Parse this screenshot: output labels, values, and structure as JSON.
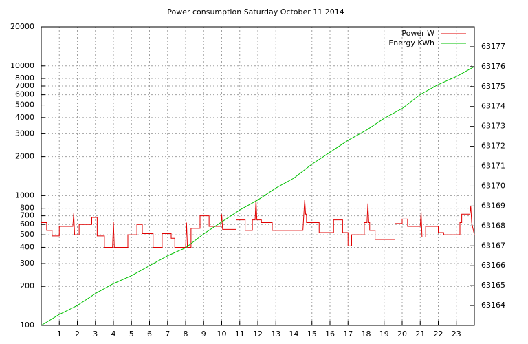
{
  "chart_data": {
    "type": "line",
    "title": "Power consumption Saturday October 11 2014",
    "xlim": [
      0,
      24
    ],
    "xticks": [
      1,
      2,
      3,
      4,
      5,
      6,
      7,
      8,
      9,
      10,
      11,
      12,
      13,
      14,
      15,
      16,
      17,
      18,
      19,
      20,
      21,
      22,
      23
    ],
    "ylim": [
      100,
      20000
    ],
    "ylog": true,
    "yticks": [
      100,
      200,
      300,
      400,
      500,
      600,
      700,
      800,
      1000,
      2000,
      3000,
      4000,
      5000,
      6000,
      7000,
      8000,
      10000,
      20000
    ],
    "y2lim": [
      63163,
      63178
    ],
    "y2ticks": [
      63164,
      63165,
      63166,
      63167,
      63168,
      63169,
      63170,
      63171,
      63172,
      63173,
      63174,
      63175,
      63176,
      63177
    ],
    "grid": true,
    "legend": "top-right",
    "series": [
      {
        "name": "Power W",
        "color": "#e00000",
        "x": [
          0,
          0.3,
          0.3,
          0.6,
          0.6,
          1.0,
          1.0,
          1.75,
          1.8,
          1.85,
          2.1,
          2.1,
          2.8,
          2.8,
          3.1,
          3.1,
          3.5,
          3.5,
          3.95,
          4.0,
          4.05,
          4.8,
          4.8,
          5.3,
          5.3,
          5.6,
          5.6,
          6.2,
          6.2,
          6.7,
          6.7,
          7.2,
          7.2,
          7.4,
          7.4,
          8.0,
          8.05,
          8.1,
          8.3,
          8.3,
          8.8,
          8.8,
          9.3,
          9.3,
          9.95,
          10.0,
          10.05,
          10.8,
          10.8,
          11.3,
          11.3,
          11.7,
          11.7,
          11.85,
          11.9,
          11.95,
          12.2,
          12.2,
          12.8,
          12.8,
          14.5,
          14.55,
          14.6,
          14.65,
          14.7,
          14.7,
          15.4,
          15.4,
          16.2,
          16.2,
          16.7,
          16.7,
          17.0,
          17.0,
          17.2,
          17.2,
          17.9,
          17.9,
          18.05,
          18.1,
          18.15,
          18.2,
          18.2,
          18.5,
          18.5,
          19.6,
          19.6,
          20.0,
          20.0,
          20.3,
          20.3,
          21.0,
          21.05,
          21.1,
          21.3,
          21.3,
          22.0,
          22.0,
          22.3,
          22.3,
          23.2,
          23.2,
          23.3,
          23.3,
          23.75,
          23.8,
          23.85,
          24.0
        ],
        "values": [
          620,
          620,
          540,
          540,
          490,
          490,
          580,
          580,
          730,
          500,
          500,
          600,
          600,
          680,
          680,
          490,
          490,
          400,
          400,
          630,
          400,
          400,
          500,
          500,
          600,
          600,
          510,
          510,
          400,
          400,
          510,
          510,
          470,
          470,
          400,
          400,
          620,
          400,
          400,
          560,
          560,
          700,
          700,
          580,
          580,
          720,
          550,
          550,
          650,
          650,
          540,
          540,
          650,
          650,
          940,
          650,
          650,
          620,
          620,
          540,
          540,
          720,
          930,
          720,
          720,
          620,
          620,
          520,
          520,
          650,
          650,
          520,
          520,
          410,
          410,
          500,
          500,
          620,
          620,
          870,
          620,
          620,
          540,
          540,
          460,
          460,
          610,
          610,
          660,
          660,
          580,
          580,
          750,
          480,
          480,
          580,
          580,
          520,
          520,
          500,
          500,
          620,
          620,
          720,
          720,
          830,
          620,
          500
        ]
      },
      {
        "name": "Energy KWh",
        "color": "#00c000",
        "axis": "y2",
        "x": [
          0,
          1,
          2,
          3,
          4,
          5,
          6,
          7,
          8,
          9,
          10,
          11,
          12,
          13,
          14,
          15,
          16,
          17,
          18,
          19,
          20,
          21,
          22,
          23,
          24
        ],
        "values": [
          63163.0,
          63163.55,
          63164.0,
          63164.6,
          63165.1,
          63165.5,
          63166.0,
          63166.5,
          63166.9,
          63167.6,
          63168.2,
          63168.8,
          63169.3,
          63169.9,
          63170.4,
          63171.1,
          63171.7,
          63172.3,
          63172.8,
          63173.4,
          63173.9,
          63174.6,
          63175.1,
          63175.5,
          63176.0
        ]
      }
    ]
  }
}
